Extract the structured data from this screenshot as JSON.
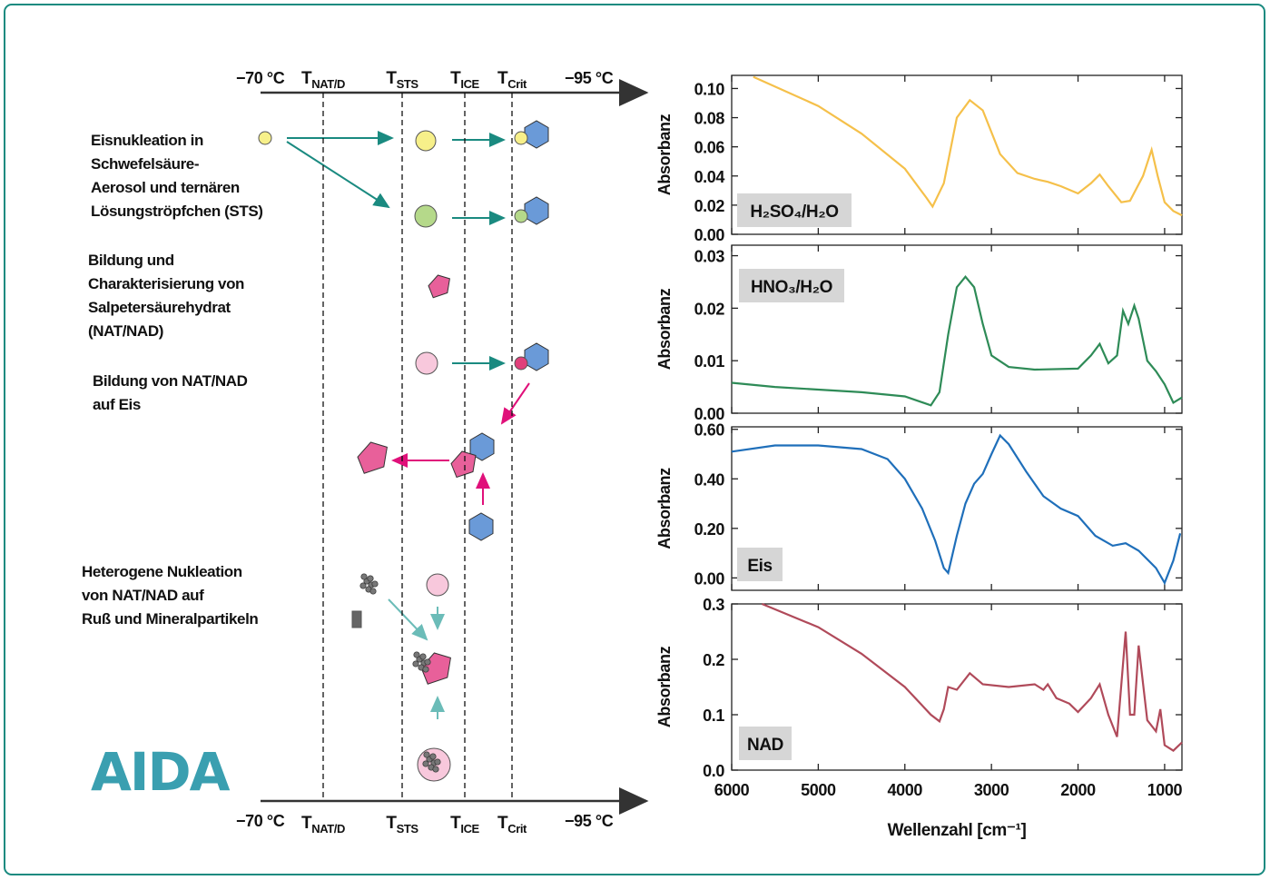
{
  "diagram": {
    "axis_start": "−70 °C",
    "axis_end": "−95 °C",
    "temperatures": [
      {
        "base": "T",
        "sub": "NAT/D"
      },
      {
        "base": "T",
        "sub": "STS"
      },
      {
        "base": "T",
        "sub": "ICE"
      },
      {
        "base": "T",
        "sub": "Crit"
      }
    ],
    "descriptions": [
      [
        "Eisnukleation in",
        "Schwefelsäure-",
        "Aerosol und ternären",
        "Lösungströpfchen (STS)"
      ],
      [
        "Bildung und",
        "Charakterisierung von",
        "Salpetersäurehydrat",
        "(NAT/NAD)"
      ],
      [
        "Bildung von NAT/NAD",
        "auf Eis"
      ],
      [
        "Heterogene Nukleation",
        "von NAT/NAD auf",
        "Ruß und Mineralpartikeln"
      ]
    ],
    "logo": "AIDA"
  },
  "chart_data": [
    {
      "type": "line",
      "ylabel": "Absorbanz",
      "annotation": "H₂SO₄/H₂O",
      "color": "#f5c04a",
      "x": [
        5750,
        5000,
        4500,
        4000,
        3750,
        3680,
        3550,
        3400,
        3250,
        3100,
        2900,
        2700,
        2500,
        2350,
        2200,
        2000,
        1850,
        1750,
        1650,
        1500,
        1400,
        1250,
        1150,
        1080,
        1000,
        900,
        800
      ],
      "values": [
        0.108,
        0.088,
        0.069,
        0.045,
        0.025,
        0.019,
        0.035,
        0.08,
        0.092,
        0.085,
        0.055,
        0.042,
        0.038,
        0.036,
        0.033,
        0.028,
        0.035,
        0.041,
        0.033,
        0.022,
        0.023,
        0.04,
        0.058,
        0.04,
        0.022,
        0.016,
        0.013
      ],
      "xlim": [
        6000,
        800
      ],
      "ylim": [
        0,
        0.109
      ],
      "yticks": [
        {
          "value": 0,
          "label": "0.00"
        },
        0.02,
        0.04,
        0.06,
        0.08,
        {
          "value": 0.1,
          "label": "0.10"
        }
      ]
    },
    {
      "type": "line",
      "ylabel": "Absorbanz",
      "annotation": "HNO₃/H₂O",
      "color": "#2e8b57",
      "x": [
        6000,
        5500,
        5000,
        4500,
        4000,
        3700,
        3600,
        3500,
        3400,
        3300,
        3200,
        3100,
        3000,
        2800,
        2500,
        2000,
        1850,
        1750,
        1650,
        1550,
        1480,
        1420,
        1350,
        1300,
        1200,
        1100,
        1000,
        900,
        800
      ],
      "values": [
        0.0058,
        0.005,
        0.0045,
        0.004,
        0.0032,
        0.0015,
        0.004,
        0.015,
        0.024,
        0.026,
        0.024,
        0.017,
        0.011,
        0.0088,
        0.0083,
        0.0085,
        0.011,
        0.0132,
        0.0095,
        0.011,
        0.0195,
        0.017,
        0.0205,
        0.018,
        0.01,
        0.008,
        0.0055,
        0.002,
        0.003
      ],
      "xlim": [
        6000,
        800
      ],
      "ylim": [
        0,
        0.032
      ],
      "yticks": [
        {
          "value": 0,
          "label": "0.00"
        },
        0.01,
        0.02,
        0.03
      ]
    },
    {
      "type": "line",
      "ylabel": "Absorbanz",
      "annotation": "Eis",
      "color": "#1f6fba",
      "x": [
        6000,
        5500,
        5000,
        4500,
        4200,
        4000,
        3800,
        3650,
        3550,
        3500,
        3400,
        3300,
        3200,
        3100,
        3000,
        2900,
        2800,
        2600,
        2400,
        2200,
        2000,
        1800,
        1600,
        1450,
        1300,
        1100,
        1000,
        900,
        820
      ],
      "values": [
        0.51,
        0.535,
        0.535,
        0.52,
        0.48,
        0.4,
        0.28,
        0.15,
        0.04,
        0.02,
        0.17,
        0.3,
        0.38,
        0.42,
        0.5,
        0.575,
        0.54,
        0.43,
        0.33,
        0.28,
        0.25,
        0.17,
        0.13,
        0.14,
        0.11,
        0.04,
        -0.02,
        0.07,
        0.18
      ],
      "xlim": [
        6000,
        800
      ],
      "ylim": [
        -0.05,
        0.61
      ],
      "yticks": [
        {
          "value": 0,
          "label": "0.00"
        },
        {
          "value": 0.2,
          "label": "0.20"
        },
        {
          "value": 0.4,
          "label": "0.40"
        },
        {
          "value": 0.6,
          "label": "0.60"
        }
      ]
    },
    {
      "type": "line",
      "ylabel": "Absorbanz",
      "annotation": "NAD",
      "color": "#b04a5a",
      "x": [
        5650,
        5000,
        4500,
        4000,
        3700,
        3600,
        3550,
        3500,
        3400,
        3250,
        3100,
        2800,
        2500,
        2400,
        2350,
        2250,
        2100,
        2000,
        1850,
        1750,
        1650,
        1550,
        1450,
        1400,
        1350,
        1300,
        1200,
        1100,
        1050,
        1000,
        900,
        800
      ],
      "values": [
        0.3,
        0.258,
        0.21,
        0.15,
        0.1,
        0.088,
        0.11,
        0.15,
        0.145,
        0.175,
        0.155,
        0.15,
        0.155,
        0.145,
        0.155,
        0.13,
        0.12,
        0.105,
        0.13,
        0.155,
        0.1,
        0.06,
        0.25,
        0.1,
        0.1,
        0.225,
        0.09,
        0.07,
        0.11,
        0.045,
        0.035,
        0.05
      ],
      "xlim": [
        6000,
        800
      ],
      "ylim": [
        0,
        0.3
      ],
      "yticks": [
        {
          "value": 0,
          "label": "0.0"
        },
        0.1,
        0.2,
        0.3
      ],
      "xticks": [
        6000,
        5000,
        4000,
        3000,
        2000,
        1000
      ],
      "xlabel": "Wellenzahl [cm⁻¹]"
    }
  ]
}
